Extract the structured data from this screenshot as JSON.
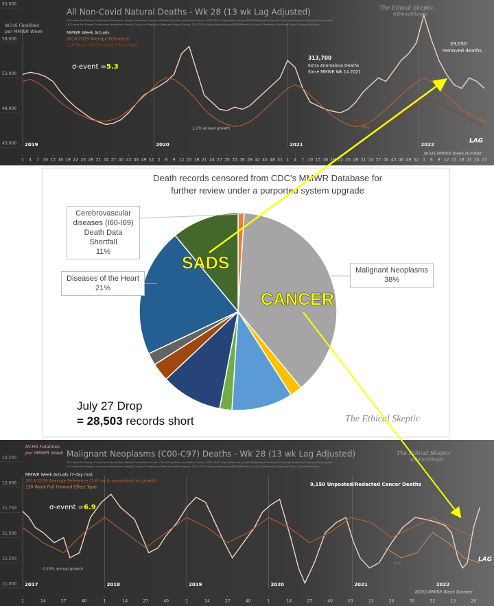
{
  "chart_data": [
    {
      "type": "line",
      "title": "All Non-Covid Natural Deaths - Wk 28 (13 wk Lag Adjusted)",
      "sources": [
        "US Center for Disease Control and Prevention: Weekly Provisional Counts of Deaths by State and Select Causes, 2020-2022; https://data.cdc.gov/NCHS/Weekly-Provisional-Counts-of-Deaths-by-State-and-S/muzy-jte6",
        "US Center for Disease Control and Prevention: Weekly Counts of Deaths by State and Select Causes, 2014-2019; https://data.cdc.gov/NCHS/Weekly-Counts-of-Deaths-by-State-and-Select-Causes/3yf8-kanr"
      ],
      "ylabel_lines": [
        "NCHS Fatalities",
        "per MMWR Week"
      ],
      "xlabel": "NCHS MMWR Week Number",
      "watermark": [
        "The Ethical Skeptic",
        "@EthicalSkeptic"
      ],
      "sigma_label": "σ-event =",
      "sigma_value": "5.3",
      "annotations": [
        "313,700",
        "Extra Anomalous Deaths",
        "Since MMWR Wk 14 2021",
        "29,050",
        "removed deaths",
        "1.1% annual growth",
        "PFE",
        "LAG"
      ],
      "years": [
        {
          "label": "2019",
          "x": 0
        },
        {
          "label": "2020",
          "x": 52
        },
        {
          "label": "2021",
          "x": 105
        },
        {
          "label": "2022",
          "x": 157
        }
      ],
      "xlim": [
        0,
        186
      ],
      "ylim": [
        43000,
        63000
      ],
      "yticks": [
        {
          "value": 43000,
          "label": "43,000"
        },
        {
          "value": 48000,
          "label": "48,000"
        },
        {
          "value": 53000,
          "label": "53,000"
        },
        {
          "value": 58000,
          "label": "58,000"
        },
        {
          "value": 63000,
          "label": "63,000"
        }
      ],
      "xticks": [
        {
          "value": 0,
          "label": "1"
        },
        {
          "value": 3,
          "label": "4"
        },
        {
          "value": 6,
          "label": "7"
        },
        {
          "value": 9,
          "label": "10"
        },
        {
          "value": 12,
          "label": "13"
        },
        {
          "value": 15,
          "label": "16"
        },
        {
          "value": 18,
          "label": "19"
        },
        {
          "value": 21,
          "label": "22"
        },
        {
          "value": 24,
          "label": "25"
        },
        {
          "value": 27,
          "label": "28"
        },
        {
          "value": 30,
          "label": "31"
        },
        {
          "value": 33,
          "label": "34"
        },
        {
          "value": 36,
          "label": "37"
        },
        {
          "value": 39,
          "label": "40"
        },
        {
          "value": 42,
          "label": "43"
        },
        {
          "value": 45,
          "label": "46"
        },
        {
          "value": 48,
          "label": "49"
        },
        {
          "value": 51,
          "label": "52"
        },
        {
          "value": 54,
          "label": "3"
        },
        {
          "value": 57,
          "label": "6"
        },
        {
          "value": 60,
          "label": "9"
        },
        {
          "value": 63,
          "label": "12"
        },
        {
          "value": 66,
          "label": "15"
        },
        {
          "value": 69,
          "label": "18"
        },
        {
          "value": 72,
          "label": "21"
        },
        {
          "value": 75,
          "label": "24"
        },
        {
          "value": 78,
          "label": "27"
        },
        {
          "value": 81,
          "label": "30"
        },
        {
          "value": 84,
          "label": "33"
        },
        {
          "value": 87,
          "label": "36"
        },
        {
          "value": 90,
          "label": "39"
        },
        {
          "value": 93,
          "label": "42"
        },
        {
          "value": 96,
          "label": "45"
        },
        {
          "value": 99,
          "label": "48"
        },
        {
          "value": 102,
          "label": "51"
        },
        {
          "value": 105,
          "label": "1"
        },
        {
          "value": 108,
          "label": "4"
        },
        {
          "value": 111,
          "label": "7"
        },
        {
          "value": 114,
          "label": "10"
        },
        {
          "value": 117,
          "label": "13"
        },
        {
          "value": 120,
          "label": "16"
        },
        {
          "value": 123,
          "label": "19"
        },
        {
          "value": 126,
          "label": "22"
        },
        {
          "value": 129,
          "label": "25"
        },
        {
          "value": 132,
          "label": "28"
        },
        {
          "value": 135,
          "label": "31"
        },
        {
          "value": 138,
          "label": "34"
        },
        {
          "value": 141,
          "label": "37"
        },
        {
          "value": 144,
          "label": "40"
        },
        {
          "value": 147,
          "label": "43"
        },
        {
          "value": 150,
          "label": "46"
        },
        {
          "value": 153,
          "label": "49"
        },
        {
          "value": 156,
          "label": "52"
        },
        {
          "value": 159,
          "label": "3"
        },
        {
          "value": 162,
          "label": "6"
        },
        {
          "value": 165,
          "label": "9"
        },
        {
          "value": 168,
          "label": "12"
        },
        {
          "value": 171,
          "label": "15"
        },
        {
          "value": 174,
          "label": "18"
        },
        {
          "value": 177,
          "label": "21"
        },
        {
          "value": 180,
          "label": "24"
        },
        {
          "value": 183,
          "label": "27"
        }
      ],
      "x": [
        0,
        3,
        6,
        9,
        12,
        15,
        18,
        21,
        24,
        27,
        30,
        33,
        36,
        39,
        42,
        45,
        48,
        51,
        54,
        57,
        60,
        63,
        66,
        69,
        72,
        75,
        78,
        81,
        84,
        87,
        90,
        93,
        96,
        99,
        102,
        105,
        108,
        111,
        114,
        117,
        120,
        123,
        126,
        129,
        132,
        135,
        138,
        141,
        144,
        147,
        150,
        153,
        156,
        159,
        162,
        165,
        168,
        171,
        174,
        177,
        180,
        183
      ],
      "series": [
        {
          "name": "MMWR Week Actuals",
          "color": "#f6d3bb",
          "values": [
            53500,
            53800,
            53600,
            53200,
            52500,
            51000,
            49800,
            48800,
            48000,
            47200,
            46700,
            46300,
            46500,
            47000,
            48000,
            49300,
            50500,
            51200,
            51800,
            52500,
            53500,
            56500,
            57500,
            54000,
            50500,
            49500,
            48500,
            48300,
            48800,
            48500,
            49000,
            50000,
            51000,
            52000,
            53000,
            55500,
            54500,
            51500,
            49500,
            49000,
            48500,
            48200,
            48000,
            48500,
            49500,
            51000,
            52000,
            53000,
            52500,
            54000,
            55500,
            56500,
            58000,
            62000,
            58500,
            55500,
            53500,
            52000,
            51500,
            53000,
            52500,
            51500
          ]
        },
        {
          "name": "2014-2019 Average Reference",
          "color": "#c8622a",
          "values": [
            52500,
            52800,
            52300,
            51500,
            50500,
            49500,
            48700,
            48000,
            47500,
            47000,
            46800,
            46800,
            47000,
            47500,
            48300,
            49300,
            50300,
            51300,
            52500,
            53000,
            52800,
            52000,
            51000,
            49800,
            48500,
            47500,
            46800,
            46300,
            46000,
            46200,
            46700,
            47500,
            48500,
            49500,
            50500,
            51500,
            52000,
            51500,
            50500,
            49500,
            48500,
            47500,
            46800,
            46300,
            46000,
            46200,
            46700,
            47500,
            48500,
            49500,
            50500,
            51500,
            52300,
            53000,
            52500,
            51500,
            50500,
            49500,
            48500,
            47800,
            47200,
            46800
          ]
        },
        {
          "name": "130 Week Pull Forward Effect Taper",
          "color": "#8e3f1c",
          "x": [
            130,
            140,
            150,
            160,
            170,
            180,
            183
          ],
          "values": [
            47000,
            46500,
            47500,
            50000,
            48500,
            46500,
            46000
          ]
        }
      ]
    },
    {
      "type": "pie",
      "title": "Death records censored from CDC's MMWR Database for further review under a purported system upgrade",
      "categories": [
        null,
        "Malignant Neoplasms",
        null,
        null,
        null,
        null,
        null,
        null,
        "Diseases of the Heart",
        "Cerebrovascular diseases (I60-I69) Death Data Shortfall"
      ],
      "values": [
        1,
        38,
        2,
        10,
        2,
        10,
        3,
        2,
        21,
        11
      ],
      "value_labels": [
        null,
        "38%",
        null,
        null,
        null,
        null,
        null,
        null,
        "21%",
        "11%"
      ],
      "colors": [
        "#ed7d31",
        "#a5a5a5",
        "#ffc000",
        "#5b9bd5",
        "#70ad47",
        "#264478",
        "#9e480e",
        "#636363",
        "#255e91",
        "#43682b"
      ],
      "annotations": [
        "SADS",
        "CANCER"
      ],
      "drop": {
        "date": "July 27 Drop",
        "prefix": "=",
        "value": "28,503",
        "suffix": "records short"
      },
      "watermark": "The Ethical Skeptic"
    },
    {
      "type": "line",
      "title": "Malignant Neoplasms (C00-C97) Deaths - Wk 28 (13 wk Lag Adjusted)",
      "sources": [
        "US Center for Disease Control and Prevention: Weekly Provisional Counts of Deaths by State and Select Causes, 2020-2022; https://data.cdc.gov/NCHS/Weekly-Provisional-Counts-of-Deaths-by-State-and-S/muzy-jte6",
        "US Center for Disease Control and Prevention: Weekly Counts of Deaths by State and Select Causes, 2014-2019; https://data.cdc.gov/NCHS/Weekly-Counts-of-Deaths-by-State-and-Select-Causes/3yf8-kanr"
      ],
      "ylabel_lines": [
        "NCHS Fatalities",
        "per MMWR Week"
      ],
      "xlabel": "NCHS MMWR Week Number",
      "watermark": [
        "The Ethical Skeptic",
        "@EthicalSkeptic"
      ],
      "sigma_label": "σ-event =",
      "sigma_value": "6.9",
      "annotations": [
        "9,150 Unposted/Redacted Cancer Deaths",
        "0.23% annual growth",
        "PFE",
        "LAG"
      ],
      "years": [
        {
          "label": "2017",
          "x": 0
        },
        {
          "label": "2018",
          "x": 52
        },
        {
          "label": "2019",
          "x": 104
        },
        {
          "label": "2020",
          "x": 156
        },
        {
          "label": "2021",
          "x": 209
        },
        {
          "label": "2022",
          "x": 261
        }
      ],
      "xlim": [
        0,
        292
      ],
      "ylim": [
        11000,
        12250
      ],
      "yticks": [
        {
          "value": 11000,
          "label": "11,000"
        },
        {
          "value": 11250,
          "label": "11,250"
        },
        {
          "value": 11500,
          "label": "11,500"
        },
        {
          "value": 11750,
          "label": "11,750"
        },
        {
          "value": 12000,
          "label": "12,000"
        },
        {
          "value": 12250,
          "label": "12,250"
        }
      ],
      "xticks": [
        {
          "value": 0,
          "label": "1"
        },
        {
          "value": 13,
          "label": "14"
        },
        {
          "value": 26,
          "label": "27"
        },
        {
          "value": 39,
          "label": "40"
        },
        {
          "value": 52,
          "label": "1"
        },
        {
          "value": 65,
          "label": "14"
        },
        {
          "value": 78,
          "label": "27"
        },
        {
          "value": 91,
          "label": "40"
        },
        {
          "value": 104,
          "label": "1"
        },
        {
          "value": 117,
          "label": "14"
        },
        {
          "value": 130,
          "label": "27"
        },
        {
          "value": 143,
          "label": "40"
        },
        {
          "value": 156,
          "label": "1"
        },
        {
          "value": 169,
          "label": "14"
        },
        {
          "value": 182,
          "label": "27"
        },
        {
          "value": 195,
          "label": "40"
        },
        {
          "value": 208,
          "label": "53"
        },
        {
          "value": 221,
          "label": "13"
        },
        {
          "value": 234,
          "label": "26"
        },
        {
          "value": 247,
          "label": "39"
        },
        {
          "value": 260,
          "label": "52"
        },
        {
          "value": 273,
          "label": "13"
        },
        {
          "value": 286,
          "label": "26"
        }
      ],
      "series": [
        {
          "name": "MMWR Week Actuals (7-day ma)",
          "color": "#f6d3bb",
          "x": [
            0,
            4,
            8,
            13,
            20,
            26,
            30,
            36,
            43,
            50,
            56,
            62,
            71,
            76,
            80,
            86,
            91,
            98,
            104,
            110,
            116,
            122,
            128,
            133,
            140,
            147,
            152,
            157,
            163,
            170,
            175,
            179,
            185,
            192,
            199,
            205,
            210,
            214,
            220,
            226,
            234,
            241,
            249,
            256,
            263,
            268,
            272,
            276,
            279,
            282,
            286,
            290
          ],
          "values": [
            11760,
            11700,
            11600,
            11550,
            11450,
            11500,
            11300,
            11350,
            11700,
            11850,
            11930,
            11800,
            11680,
            11500,
            11350,
            11400,
            11520,
            11650,
            11800,
            11900,
            11850,
            11650,
            11450,
            11300,
            11450,
            11600,
            11750,
            11820,
            11880,
            11500,
            11200,
            11050,
            11250,
            11550,
            11650,
            11700,
            11450,
            11300,
            11200,
            11250,
            11450,
            11600,
            11700,
            11680,
            11650,
            11620,
            11550,
            11300,
            11200,
            11250,
            11600,
            11800
          ]
        },
        {
          "name": "2014-2019 Average Reference (7-8 ma & normalized to growth)",
          "color": "#c8622a",
          "x": [
            0,
            13,
            26,
            39,
            52,
            65,
            78,
            91,
            104,
            117,
            130,
            143,
            156,
            169,
            182,
            195,
            208,
            221,
            234,
            247,
            260,
            273,
            286
          ],
          "values": [
            11600,
            11450,
            11350,
            11550,
            11700,
            11550,
            11400,
            11550,
            11700,
            11600,
            11450,
            11550,
            11700,
            11600,
            11450,
            11550,
            11700,
            11650,
            11500,
            11600,
            11700,
            11600,
            11500
          ]
        },
        {
          "name": "130 Week Pull Forward Effect Taper",
          "color": "#e0894f",
          "x": [
            230,
            240,
            250,
            260,
            270,
            280,
            290
          ],
          "values": [
            11400,
            11300,
            11350,
            11550,
            11450,
            11300,
            11250
          ]
        }
      ]
    }
  ]
}
